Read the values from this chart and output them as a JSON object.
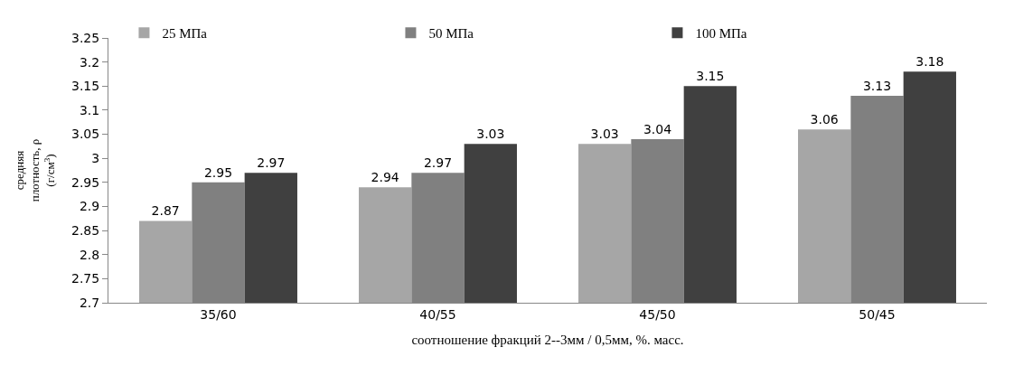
{
  "chart_data": {
    "type": "bar",
    "xlabel": "соотношение фракций 2--3мм / 0,5мм, %. масс.",
    "ylabel": "средняя плотность, ρ (г/см$^{3}$)",
    "categories": [
      "35/60",
      "40/55",
      "45/50",
      "50/45"
    ],
    "series": [
      {
        "name": "25 МПа",
        "color": "#a6a6a6",
        "values": [
          2.87,
          2.94,
          3.03,
          3.06
        ]
      },
      {
        "name": "50 МПа",
        "color": "#808080",
        "values": [
          2.95,
          2.97,
          3.04,
          3.13
        ]
      },
      {
        "name": "100 МПа",
        "color": "#404040",
        "values": [
          2.97,
          3.03,
          3.15,
          3.18
        ]
      }
    ],
    "ylim": [
      2.7,
      3.25
    ],
    "yticks": [
      {
        "value": 2.7,
        "label": "2.7"
      },
      2.75,
      {
        "value": 2.8,
        "label": "2.8"
      },
      2.85,
      {
        "value": 2.9,
        "label": "2.9"
      },
      2.95,
      {
        "value": 3,
        "label": "3"
      },
      3.05,
      {
        "value": 3.1,
        "label": "3.1"
      },
      3.15,
      {
        "value": 3.2,
        "label": "3.2"
      },
      3.25
    ],
    "data_labels": true,
    "legend": "top"
  }
}
